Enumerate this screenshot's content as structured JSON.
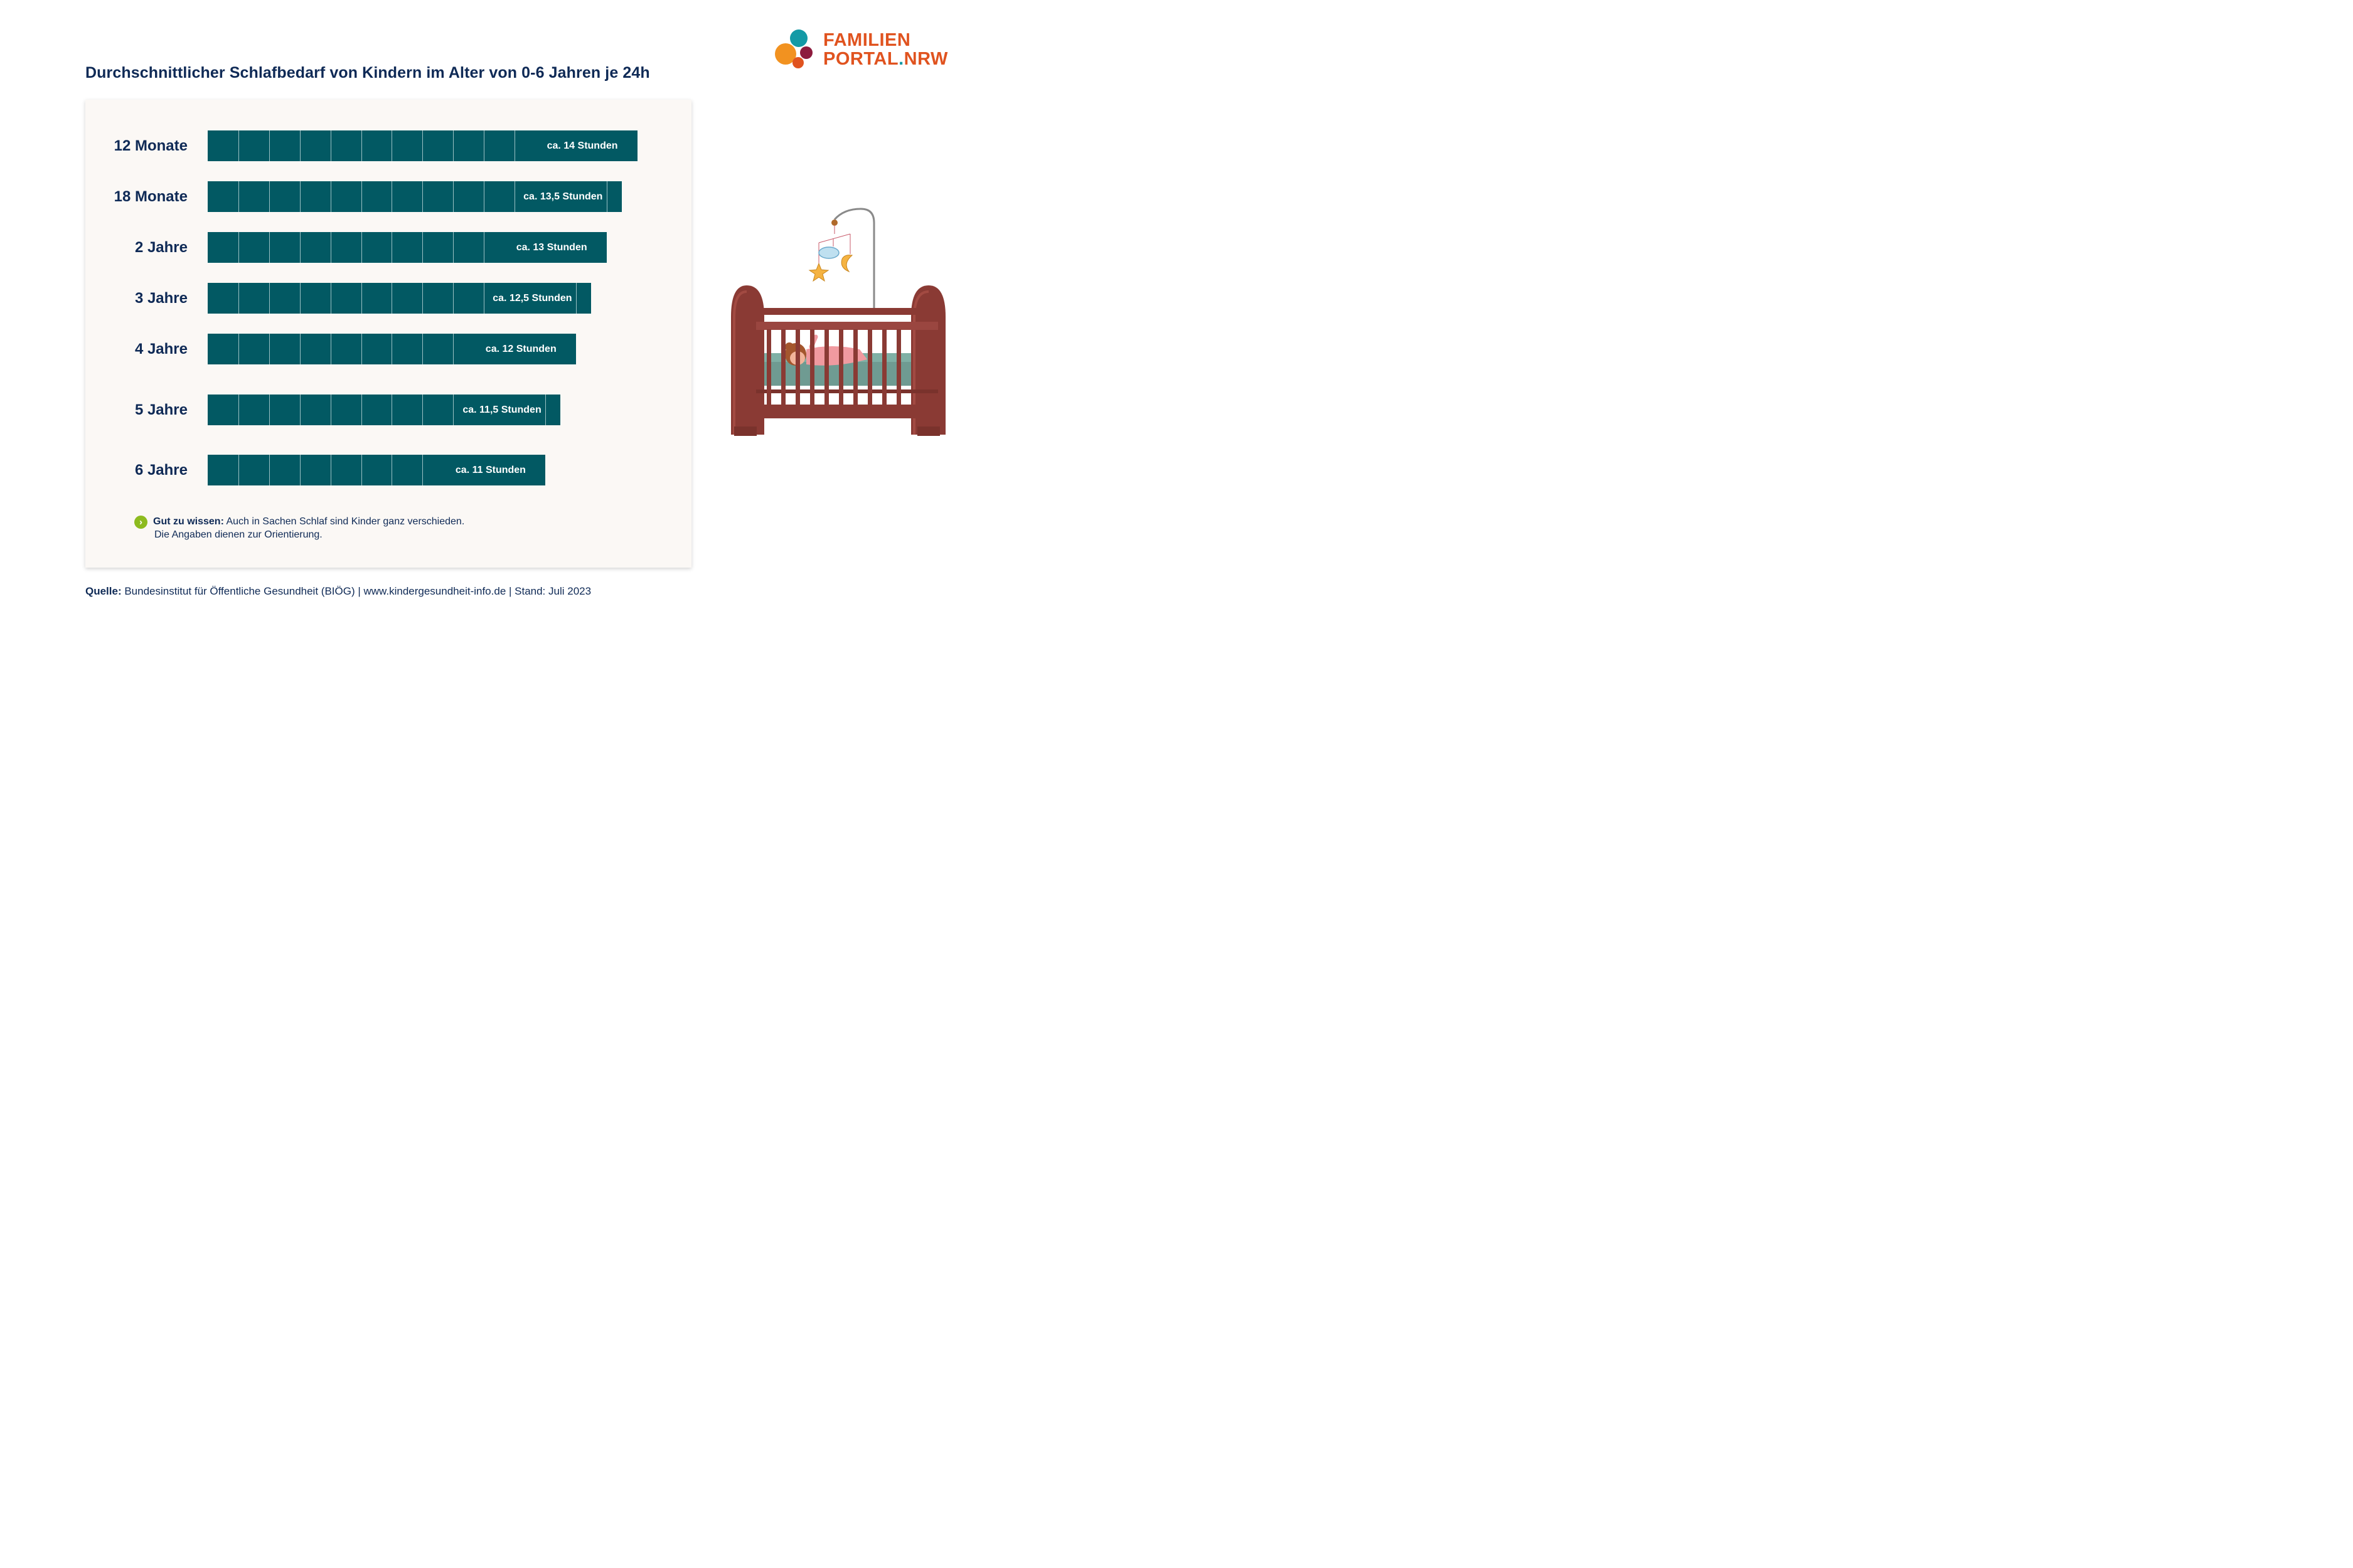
{
  "title": "Durchschnittlicher Schlafbedarf von Kindern im Alter von 0-6 Jahren je 24h",
  "logo": {
    "line1": "FAMILIEN",
    "line2_main": "PORTAL",
    "line2_dot": ".",
    "line2_end": "NRW"
  },
  "chart_data": {
    "type": "bar",
    "orientation": "horizontal",
    "title": "Durchschnittlicher Schlafbedarf von Kindern im Alter von 0-6 Jahren je 24h",
    "unit": "Stunden",
    "categories": [
      "12 Monate",
      "18 Monate",
      "2 Jahre",
      "3 Jahre",
      "4 Jahre",
      "5 Jahre",
      "6 Jahre"
    ],
    "values": [
      14,
      13.5,
      13,
      12.5,
      12,
      11.5,
      11
    ],
    "data_labels": [
      "ca. 14 Stunden",
      "ca. 13,5 Stunden",
      "ca. 13 Stunden",
      "ca. 12,5 Stunden",
      "ca. 12 Stunden",
      "ca. 11,5 Stunden",
      "ca. 11 Stunden"
    ],
    "bar_color": "#025963",
    "grid": false,
    "legend": "none"
  },
  "note": {
    "bold": "Gut zu wissen:",
    "text": " Auch in Sachen Schlaf sind Kinder ganz verschieden.",
    "line2": "Die Angaben dienen zur Orientierung."
  },
  "source": {
    "bold": "Quelle:",
    "text": " Bundesinstitut für Öffentliche Gesundheit (BIÖG) | www.kindergesundheit-info.de | Stand: Juli 2023"
  },
  "colors": {
    "accent": "#e0531f",
    "text": "#0f2a56",
    "bar": "#025963",
    "panel": "#fbf8f5"
  },
  "icons": [
    "chevron-right-icon",
    "crib-illustration",
    "logo-mark"
  ]
}
